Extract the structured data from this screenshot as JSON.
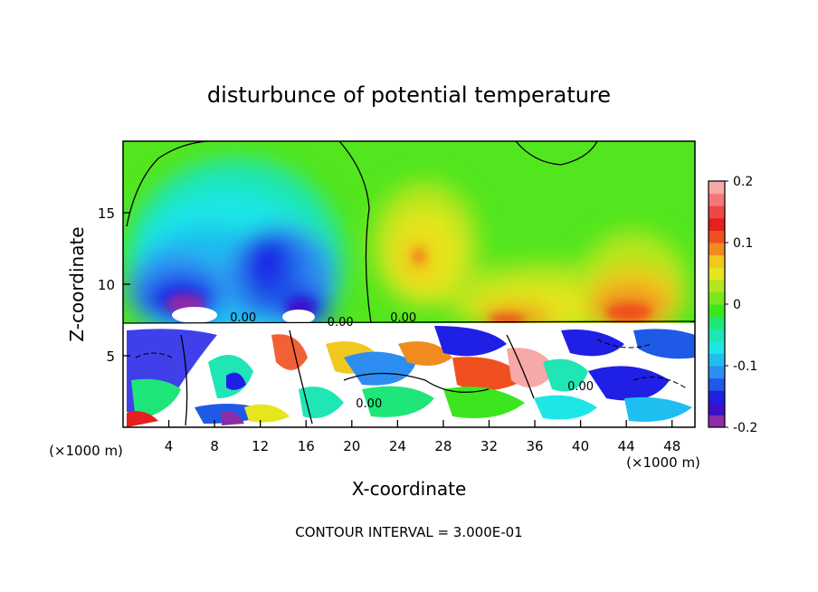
{
  "chart_data": {
    "type": "heatmap",
    "title": "disturbunce of potential temperature",
    "xlabel": "X-coordinate",
    "ylabel": "Z-coordinate",
    "x_unit": "(×1000 m)",
    "y_unit": "(×1000 m)",
    "xlim": [
      0,
      50
    ],
    "ylim": [
      0,
      20
    ],
    "x_ticks": [
      4,
      8,
      12,
      16,
      20,
      24,
      28,
      32,
      36,
      40,
      44,
      48
    ],
    "y_ticks": [
      5,
      10,
      15
    ],
    "colorbar": {
      "min": -0.2,
      "max": 0.2,
      "tick_labels": [
        "0.2",
        "0.1",
        "0",
        "-0.1",
        "-0.2"
      ],
      "tick_values": [
        0.2,
        0.1,
        0,
        -0.1,
        -0.2
      ],
      "colors": [
        "#8b2ca8",
        "#3d10c8",
        "#1f1fe6",
        "#1f5ae6",
        "#2e8df0",
        "#1fbef0",
        "#1fe6e6",
        "#1fe6b4",
        "#1fe678",
        "#3ce61f",
        "#7ae61f",
        "#b4e61f",
        "#e6e61f",
        "#f0c81f",
        "#f08c1f",
        "#f0501f",
        "#e61f1f",
        "#f04646",
        "#f47878",
        "#f7a8a8"
      ]
    },
    "contour_labels": [
      {
        "text": "0.00",
        "x": 10.5,
        "z": 7.4
      },
      {
        "text": "0.00",
        "x": 19,
        "z": 7.1
      },
      {
        "text": "0.00",
        "x": 24.5,
        "z": 7.4
      },
      {
        "text": "0.00",
        "x": 21.5,
        "z": 1.4
      },
      {
        "text": "0.00",
        "x": 40,
        "z": 2.6
      }
    ],
    "footer": "CONTOUR INTERVAL = 3.000E-01"
  }
}
